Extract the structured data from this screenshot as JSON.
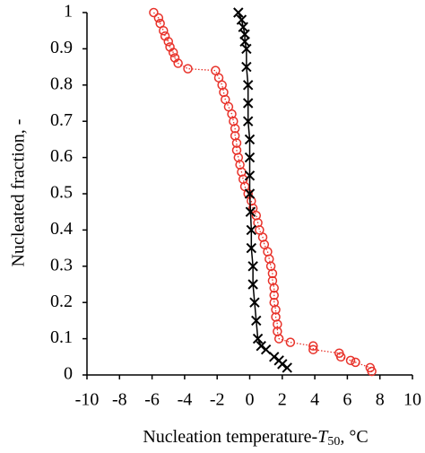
{
  "chart_data": {
    "type": "scatter",
    "xlabel": [
      "Nucleation temperature-",
      "T",
      "50",
      ", °C"
    ],
    "ylabel": "Nucleated fraction, -",
    "xlim": [
      -10,
      10
    ],
    "xticks": [
      -10,
      -8,
      -6,
      -4,
      -2,
      0,
      2,
      4,
      6,
      8,
      10
    ],
    "ylim": [
      0,
      1
    ],
    "yticks": [
      0,
      0.1,
      0.2,
      0.3,
      0.4,
      0.5,
      0.6,
      0.7,
      0.8,
      0.9,
      1
    ],
    "series": [
      {
        "color": "#e8322a",
        "marker": "circle",
        "line": "dotted",
        "x": [
          -5.9,
          -5.6,
          -5.5,
          -5.3,
          -5.2,
          -5.0,
          -4.9,
          -4.7,
          -4.6,
          -4.4,
          -3.8,
          -2.1,
          -1.9,
          -1.7,
          -1.6,
          -1.5,
          -1.3,
          -1.1,
          -1.0,
          -0.9,
          -0.9,
          -0.8,
          -0.8,
          -0.7,
          -0.6,
          -0.5,
          -0.4,
          -0.3,
          -0.1,
          0.1,
          0.2,
          0.4,
          0.5,
          0.6,
          0.8,
          0.9,
          1.1,
          1.2,
          1.3,
          1.4,
          1.4,
          1.5,
          1.5,
          1.5,
          1.6,
          1.6,
          1.7,
          1.7,
          1.8,
          2.5,
          3.9,
          3.9,
          5.5,
          5.6,
          6.2,
          6.5,
          7.4,
          7.5
        ],
        "values": [
          1.0,
          0.985,
          0.97,
          0.95,
          0.935,
          0.92,
          0.905,
          0.89,
          0.875,
          0.86,
          0.845,
          0.84,
          0.82,
          0.8,
          0.78,
          0.76,
          0.74,
          0.72,
          0.7,
          0.68,
          0.66,
          0.64,
          0.62,
          0.6,
          0.58,
          0.56,
          0.54,
          0.52,
          0.5,
          0.48,
          0.46,
          0.44,
          0.42,
          0.4,
          0.38,
          0.36,
          0.34,
          0.32,
          0.3,
          0.28,
          0.26,
          0.24,
          0.22,
          0.2,
          0.18,
          0.16,
          0.14,
          0.12,
          0.1,
          0.09,
          0.08,
          0.07,
          0.06,
          0.05,
          0.04,
          0.035,
          0.02,
          0.01
        ]
      },
      {
        "color": "#000000",
        "marker": "x",
        "line": "solid",
        "x": [
          -0.7,
          -0.5,
          -0.4,
          -0.3,
          -0.3,
          -0.2,
          -0.2,
          -0.1,
          -0.1,
          -0.1,
          0,
          0,
          0,
          0,
          0.05,
          0.1,
          0.1,
          0.2,
          0.2,
          0.3,
          0.4,
          0.5,
          0.7,
          1.0,
          1.5,
          1.8,
          2.0,
          2.3
        ],
        "values": [
          1.0,
          0.98,
          0.96,
          0.94,
          0.92,
          0.9,
          0.85,
          0.8,
          0.75,
          0.7,
          0.65,
          0.6,
          0.55,
          0.5,
          0.45,
          0.4,
          0.35,
          0.3,
          0.25,
          0.2,
          0.15,
          0.1,
          0.08,
          0.07,
          0.05,
          0.04,
          0.03,
          0.02
        ]
      }
    ]
  }
}
